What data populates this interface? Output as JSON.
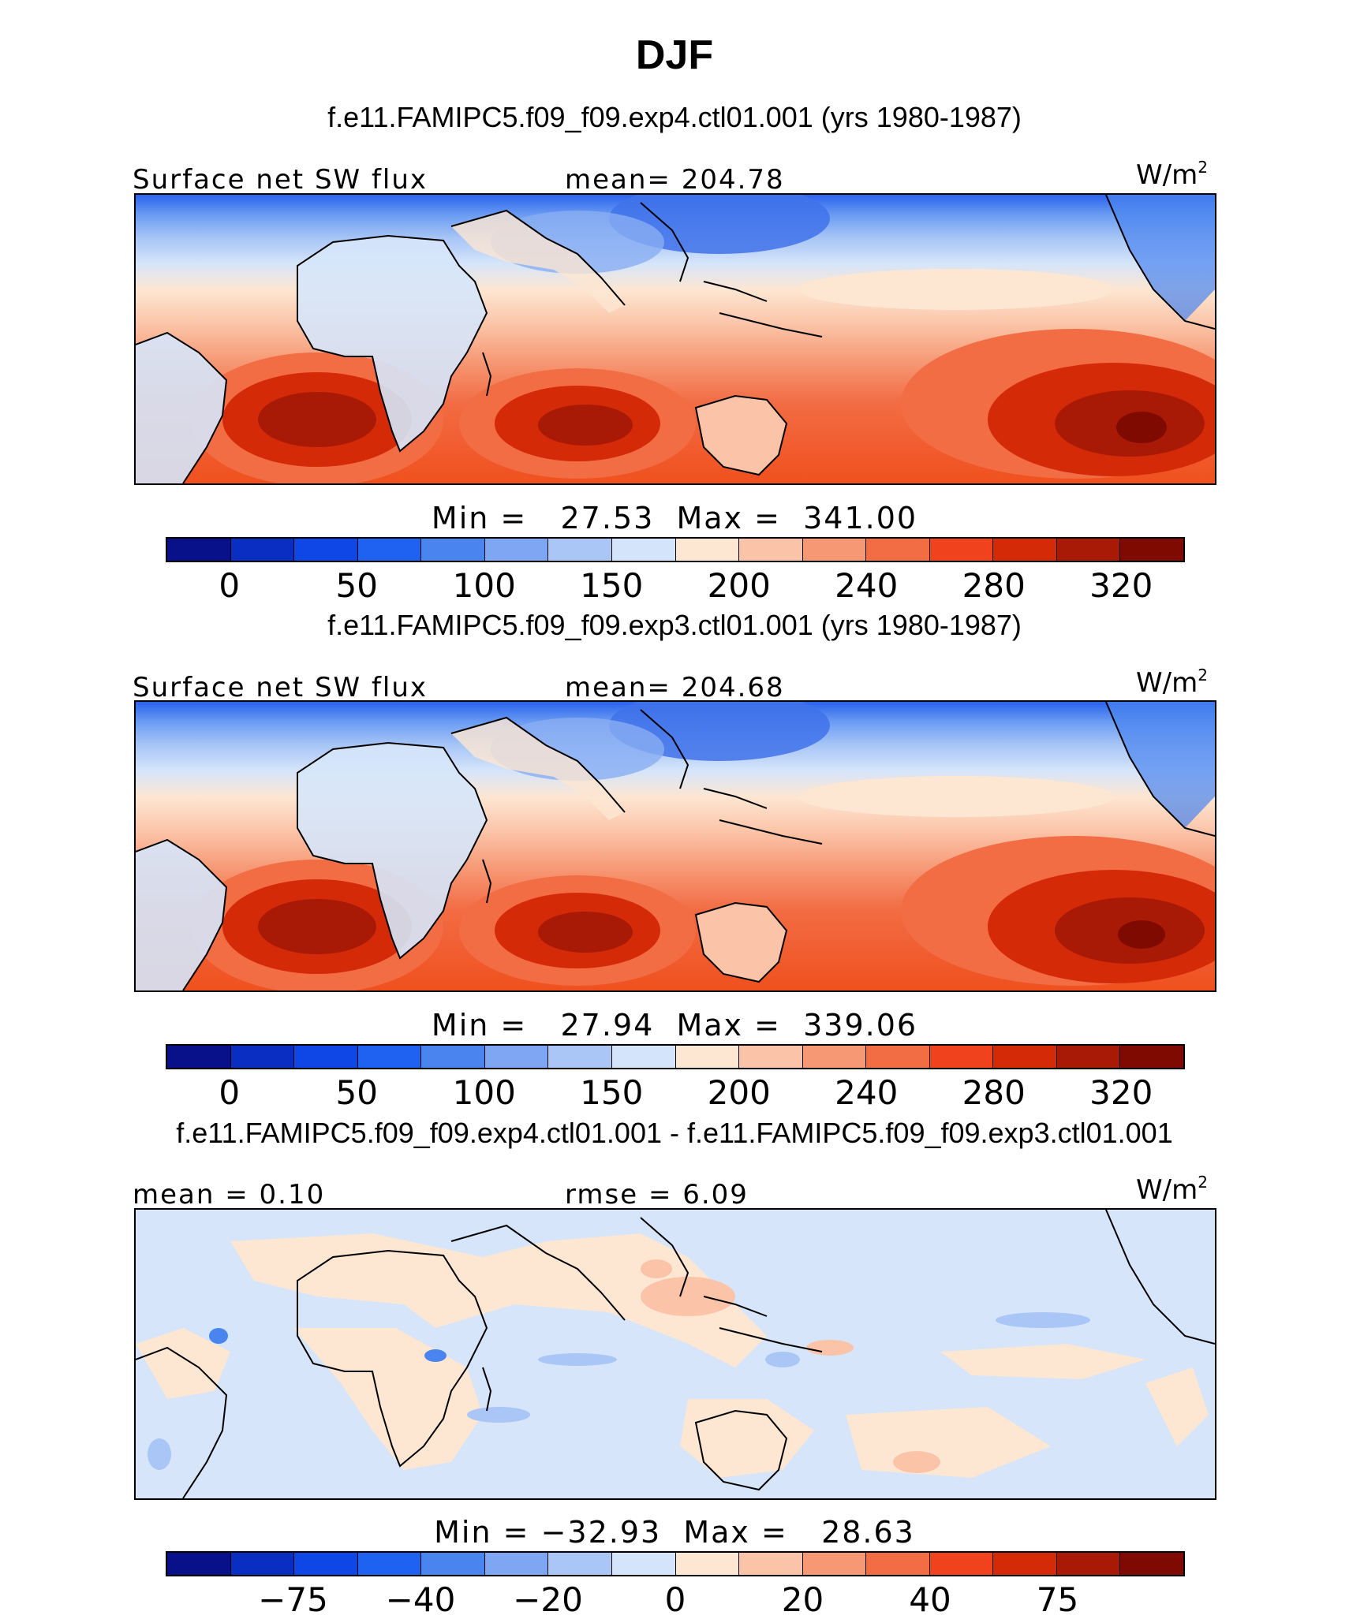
{
  "title": "DJF",
  "panels": [
    {
      "case_title": "f.e11.FAMIPC5.f09_f09.exp4.ctl01.001 (yrs 1980-1987)",
      "label_left": "Surface net SW flux",
      "label_mid": "mean= 204.78",
      "units_base": "W/m",
      "units_exp": "2",
      "minmax": "Min =   27.53  Max =  341.00",
      "colorbar": {
        "colors": [
          "#08108a",
          "#0a2ec2",
          "#0f46e6",
          "#1f62f2",
          "#4a84ef",
          "#7ea6f2",
          "#aac6f6",
          "#d4e4fa",
          "#fde6d2",
          "#fbc4a8",
          "#f69874",
          "#f26c44",
          "#f0421c",
          "#d42a08",
          "#a81a06",
          "#7e0a02"
        ],
        "ticks": [
          "0",
          "50",
          "100",
          "150",
          "200",
          "240",
          "280",
          "320"
        ]
      }
    },
    {
      "case_title": "f.e11.FAMIPC5.f09_f09.exp3.ctl01.001 (yrs 1980-1987)",
      "label_left": "Surface net SW flux",
      "label_mid": "mean= 204.68",
      "units_base": "W/m",
      "units_exp": "2",
      "minmax": "Min =   27.94  Max =  339.06",
      "colorbar": {
        "colors": [
          "#08108a",
          "#0a2ec2",
          "#0f46e6",
          "#1f62f2",
          "#4a84ef",
          "#7ea6f2",
          "#aac6f6",
          "#d4e4fa",
          "#fde6d2",
          "#fbc4a8",
          "#f69874",
          "#f26c44",
          "#f0421c",
          "#d42a08",
          "#a81a06",
          "#7e0a02"
        ],
        "ticks": [
          "0",
          "50",
          "100",
          "150",
          "200",
          "240",
          "280",
          "320"
        ]
      }
    },
    {
      "case_title": "f.e11.FAMIPC5.f09_f09.exp4.ctl01.001 - f.e11.FAMIPC5.f09_f09.exp3.ctl01.001",
      "label_left": "mean =   0.10",
      "label_mid": "rmse =   6.09",
      "units_base": "W/m",
      "units_exp": "2",
      "minmax": "Min = −32.93  Max =   28.63",
      "colorbar": {
        "colors": [
          "#08108a",
          "#0a2ec2",
          "#0f46e6",
          "#1f62f2",
          "#4a84ef",
          "#7ea6f2",
          "#aac6f6",
          "#d4e4fa",
          "#fde6d2",
          "#fbc4a8",
          "#f69874",
          "#f26c44",
          "#f0421c",
          "#d42a08",
          "#a81a06",
          "#7e0a02"
        ],
        "ticks": [
          "−75",
          "−40",
          "−20",
          "0",
          "20",
          "40",
          "75"
        ]
      }
    }
  ]
}
